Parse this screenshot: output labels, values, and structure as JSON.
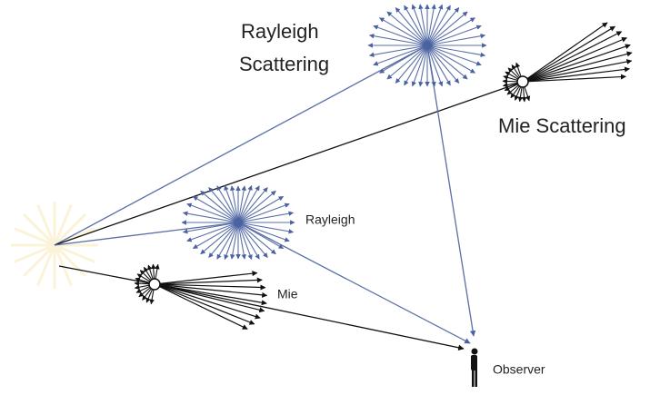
{
  "labels": {
    "rayleigh_scattering": [
      "Rayleigh",
      "Scattering"
    ],
    "mie_scattering": "Mie Scattering",
    "rayleigh": "Rayleigh",
    "mie": "Mie",
    "observer": "Observer"
  }
}
